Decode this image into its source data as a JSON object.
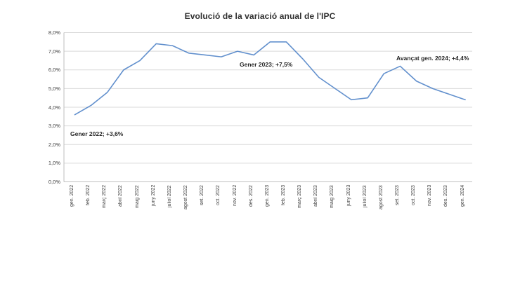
{
  "title": "Evolució de la variació anual de l'IPC",
  "annotations": [
    {
      "id": "gener-2022",
      "text": "Gener 2022; +3,6%"
    },
    {
      "id": "gener-2023",
      "text": "Gener 2023; +7,5%"
    },
    {
      "id": "avancat-gen-2024",
      "text": "Avançat gen. 2024; +4,4%"
    }
  ],
  "colors": {
    "line": "#6290cd",
    "grid": "#d9d9d9",
    "axis": "#bfbfbf",
    "label_text": "#3d3d3d",
    "title_text": "#303030",
    "background": "#ffffff"
  },
  "chart_data": {
    "type": "line",
    "title": "Evolució de la variació anual de l'IPC",
    "categories": [
      "gen. 2022",
      "feb. 2022",
      "març 2022",
      "abril 2022",
      "maig 2022",
      "juny 2022",
      "juliol 2022",
      "agost 2022",
      "set. 2022",
      "oct. 2022",
      "nov. 2022",
      "des. 2022",
      "gen. 2023",
      "feb. 2023",
      "març 2023",
      "abril 2023",
      "maig 2023",
      "juny 2023",
      "juliol 2023",
      "agost 2023",
      "set. 2023",
      "oct. 2023",
      "nov. 2023",
      "des. 2023",
      "gen. 2024"
    ],
    "series": [
      {
        "values": [
          3.6,
          4.1,
          4.8,
          6.0,
          6.5,
          7.4,
          7.3,
          6.9,
          6.8,
          6.7,
          7.0,
          6.8,
          7.5,
          7.5,
          6.6,
          5.6,
          5.0,
          4.4,
          4.5,
          5.8,
          6.2,
          5.4,
          5.0,
          4.7,
          4.4
        ]
      }
    ],
    "ylim": [
      0,
      8
    ],
    "ytick_labels": [
      "0,0%",
      "1,0%",
      "2,0%",
      "3,0%",
      "4,0%",
      "5,0%",
      "6,0%",
      "7,0%",
      "8,0%"
    ],
    "xlabel": "",
    "ylabel": "",
    "grid": true,
    "legend": false,
    "markers": false,
    "point_annotations": [
      "Gener 2022; +3,6%",
      "Gener 2023; +7,5%",
      "Avançat gen. 2024; +4,4%"
    ]
  }
}
